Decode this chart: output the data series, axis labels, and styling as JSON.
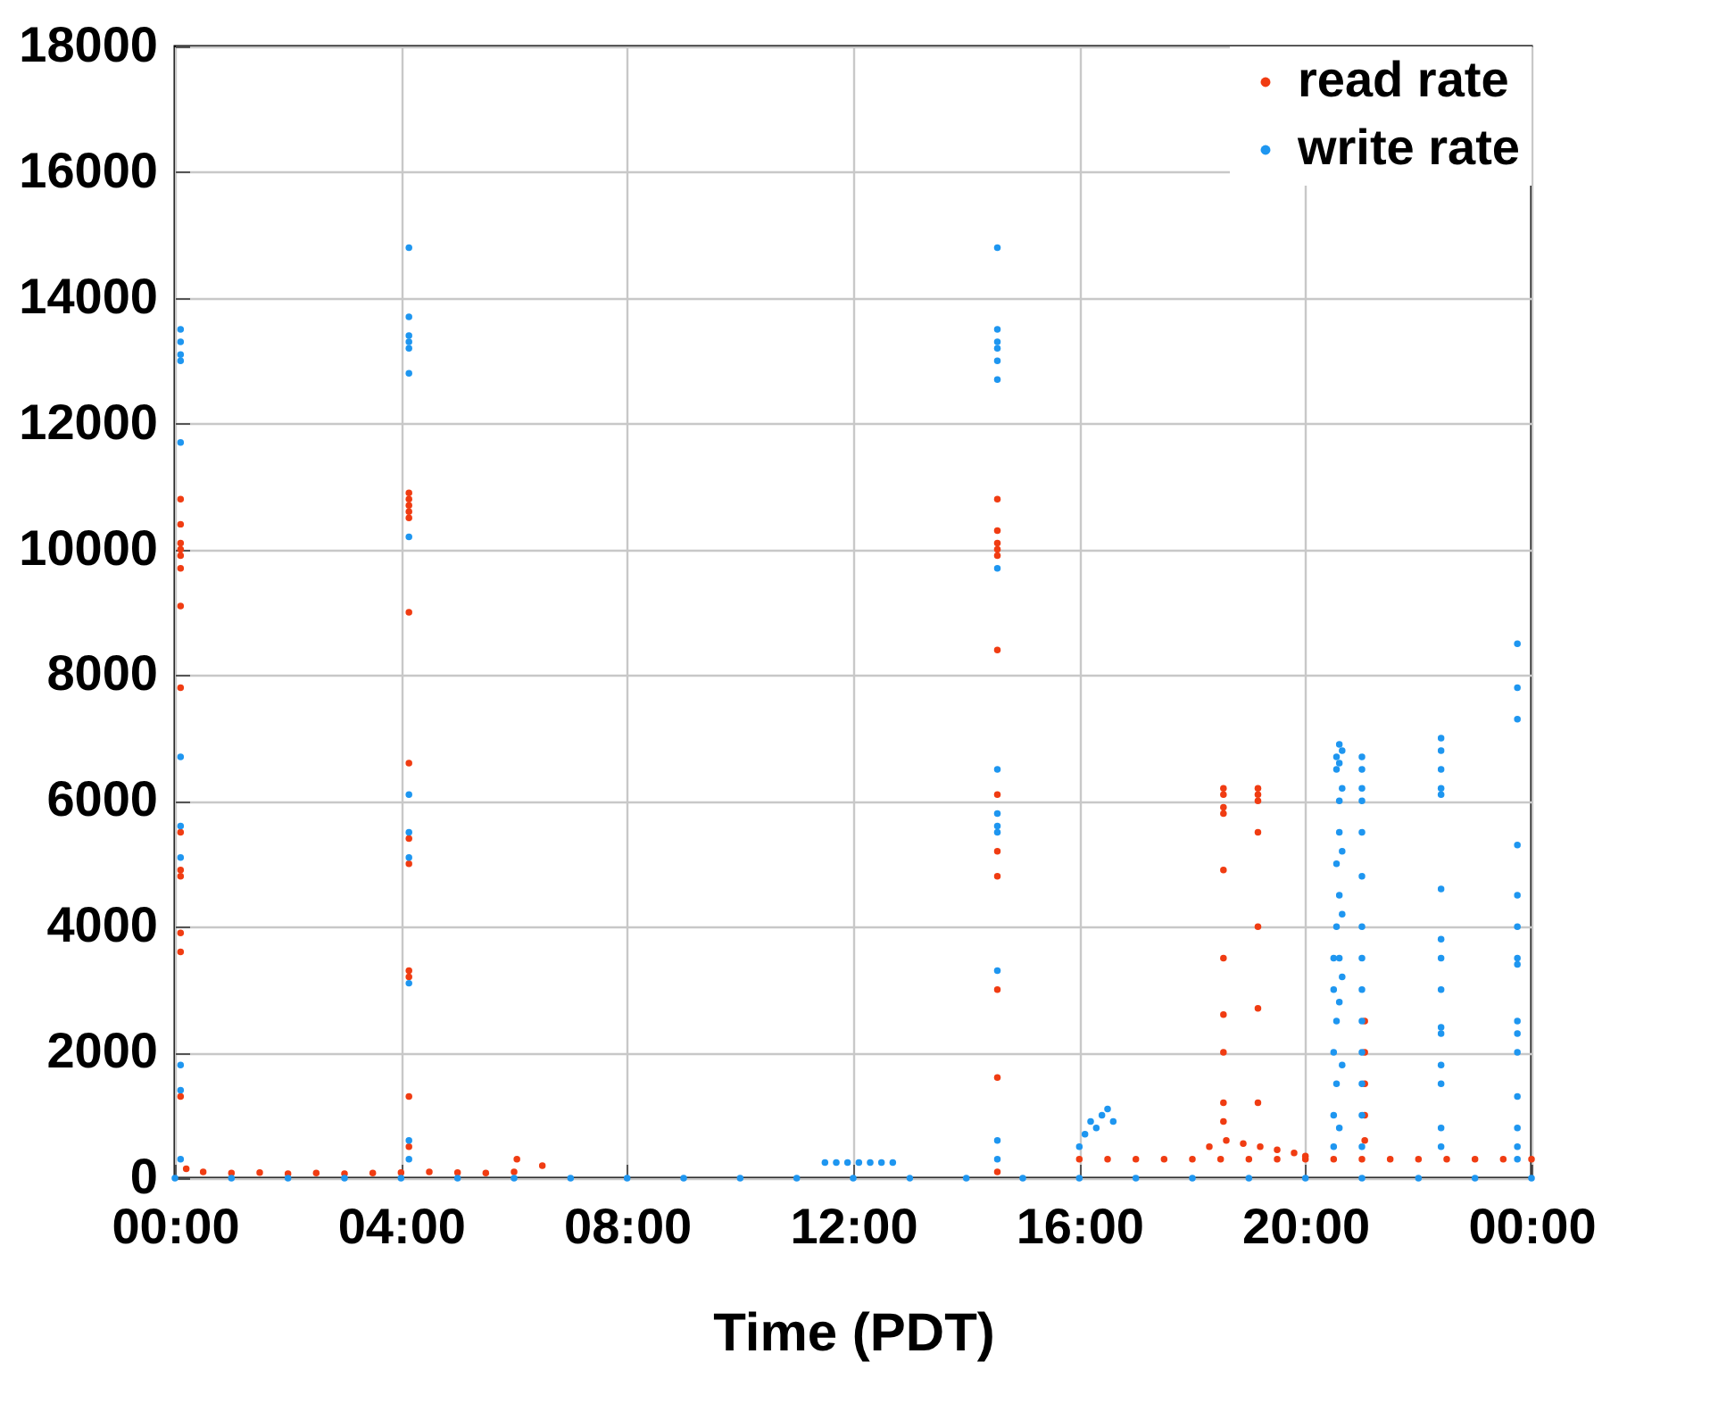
{
  "chart_data": {
    "type": "scatter",
    "xlabel": "Time (PDT)",
    "xlim": [
      0,
      24
    ],
    "ylim": [
      0,
      18000
    ],
    "xticks": [
      {
        "value": 0,
        "label": "00:00"
      },
      {
        "value": 4,
        "label": "04:00"
      },
      {
        "value": 8,
        "label": "08:00"
      },
      {
        "value": 12,
        "label": "12:00"
      },
      {
        "value": 16,
        "label": "16:00"
      },
      {
        "value": 20,
        "label": "20:00"
      },
      {
        "value": 24,
        "label": "00:00"
      }
    ],
    "yticks": [
      0,
      2000,
      4000,
      6000,
      8000,
      10000,
      12000,
      14000,
      16000,
      18000
    ],
    "grid": true,
    "legend": "top right",
    "marker": "circle",
    "series": [
      {
        "name": "read rate",
        "color": "#f03c12",
        "x": [
          0.1,
          0.1,
          0.1,
          0.1,
          0.1,
          0.1,
          0.1,
          0.1,
          0.1,
          0.1,
          0.1,
          0.1,
          0.1,
          0.1,
          0.2,
          0.5,
          1,
          1.5,
          2,
          2.5,
          3,
          3.5,
          4,
          4.5,
          5,
          5.5,
          6,
          6.05,
          6.5,
          4.14,
          4.14,
          4.14,
          4.14,
          4.14,
          4.14,
          4.14,
          4.14,
          4.14,
          4.14,
          4.14,
          4.14,
          4.14,
          14.55,
          14.55,
          14.55,
          14.55,
          14.55,
          14.55,
          14.55,
          14.55,
          14.55,
          14.55,
          14.55,
          14.55,
          16,
          16.5,
          17,
          17.5,
          18,
          18.5,
          19,
          19.5,
          20,
          20.5,
          21,
          21.5,
          22,
          22.5,
          23,
          23.5,
          24,
          18.3,
          18.6,
          18.9,
          19.2,
          19.5,
          19.8,
          20,
          18.55,
          18.55,
          18.55,
          18.55,
          18.55,
          18.55,
          18.55,
          18.55,
          18.55,
          18.55,
          19.16,
          19.16,
          19.16,
          19.16,
          19.16,
          19.16,
          19.16,
          21.05,
          21.05,
          21.05,
          21.05,
          21.05
        ],
        "values": [
          10800,
          10400,
          10100,
          10000,
          9900,
          9700,
          9100,
          7800,
          5500,
          4900,
          4800,
          3900,
          3600,
          1300,
          150,
          100,
          80,
          90,
          70,
          80,
          70,
          80,
          90,
          100,
          90,
          80,
          100,
          300,
          200,
          10900,
          10800,
          10700,
          10600,
          10500,
          9000,
          6600,
          5400,
          5000,
          3300,
          3200,
          1300,
          500,
          10800,
          10300,
          10100,
          10000,
          9900,
          8400,
          6100,
          5200,
          4800,
          3000,
          1600,
          100,
          300,
          300,
          300,
          300,
          300,
          300,
          300,
          300,
          300,
          300,
          300,
          300,
          300,
          300,
          300,
          300,
          300,
          500,
          600,
          550,
          500,
          450,
          400,
          350,
          6200,
          6100,
          5900,
          5800,
          4900,
          3500,
          2600,
          2000,
          1200,
          900,
          6200,
          6100,
          6000,
          5500,
          4000,
          2700,
          1200,
          2500,
          2000,
          1500,
          1000,
          600
        ]
      },
      {
        "name": "write rate",
        "color": "#1e96f0",
        "x": [
          0,
          1,
          2,
          3,
          4,
          5,
          6,
          7,
          8,
          9,
          10,
          11,
          12,
          13,
          14,
          15,
          16,
          17,
          18,
          19,
          20,
          21,
          22,
          23,
          24,
          0.1,
          0.1,
          0.1,
          0.1,
          0.1,
          0.1,
          0.1,
          0.1,
          0.1,
          0.1,
          0.1,
          4.14,
          4.14,
          4.14,
          4.14,
          4.14,
          4.14,
          4.14,
          4.14,
          4.14,
          4.14,
          4.14,
          4.14,
          4.14,
          11.5,
          11.7,
          11.9,
          12.1,
          12.3,
          12.5,
          12.7,
          14.55,
          14.55,
          14.55,
          14.55,
          14.55,
          14.55,
          14.55,
          14.55,
          14.55,
          14.55,
          14.55,
          14.55,
          14.55,
          14.55,
          16,
          16.1,
          16.2,
          16.3,
          16.4,
          16.5,
          16.6,
          20.5,
          20.5,
          20.5,
          20.5,
          20.5,
          20.55,
          20.55,
          20.55,
          20.55,
          20.55,
          20.55,
          20.6,
          20.6,
          20.6,
          20.6,
          20.6,
          20.6,
          20.6,
          20.6,
          20.65,
          20.65,
          20.65,
          20.65,
          20.65,
          20.65,
          21,
          21,
          21,
          21,
          21,
          21,
          21,
          21,
          21,
          21,
          21,
          21,
          21,
          21,
          22.4,
          22.4,
          22.4,
          22.4,
          22.4,
          22.4,
          22.4,
          22.4,
          22.4,
          22.4,
          22.4,
          22.4,
          22.4,
          22.4,
          22.4,
          23.75,
          23.75,
          23.75,
          23.75,
          23.75,
          23.75,
          23.75,
          23.75,
          23.75,
          23.75,
          23.75,
          23.75,
          23.75,
          23.75,
          23.75
        ],
        "values": [
          0,
          0,
          0,
          0,
          0,
          0,
          0,
          0,
          0,
          0,
          0,
          0,
          0,
          0,
          0,
          0,
          0,
          0,
          0,
          0,
          0,
          0,
          0,
          0,
          0,
          13500,
          13300,
          13100,
          13000,
          11700,
          6700,
          5600,
          5100,
          1800,
          1400,
          300,
          14800,
          13700,
          13400,
          13300,
          13200,
          12800,
          10200,
          6100,
          5500,
          5100,
          3100,
          600,
          300,
          250,
          250,
          250,
          250,
          250,
          250,
          250,
          14800,
          13500,
          13300,
          13200,
          13000,
          12700,
          9700,
          6500,
          5800,
          5600,
          5500,
          3300,
          600,
          300,
          500,
          700,
          900,
          800,
          1000,
          1100,
          900,
          3500,
          3000,
          2000,
          1000,
          500,
          6700,
          6500,
          5000,
          4000,
          2500,
          1500,
          6900,
          6600,
          6000,
          5500,
          4500,
          3500,
          2800,
          800,
          6800,
          6200,
          5200,
          4200,
          3200,
          1800,
          6700,
          6500,
          6200,
          6000,
          5500,
          4800,
          4000,
          3500,
          3000,
          2500,
          2000,
          1500,
          1000,
          500,
          7000,
          6800,
          6500,
          6200,
          6100,
          4600,
          3800,
          3500,
          3000,
          2400,
          2300,
          1800,
          1500,
          800,
          500,
          8500,
          7800,
          7300,
          5300,
          4500,
          4000,
          3500,
          3400,
          2500,
          2300,
          2000,
          1300,
          800,
          500,
          300
        ]
      }
    ]
  }
}
